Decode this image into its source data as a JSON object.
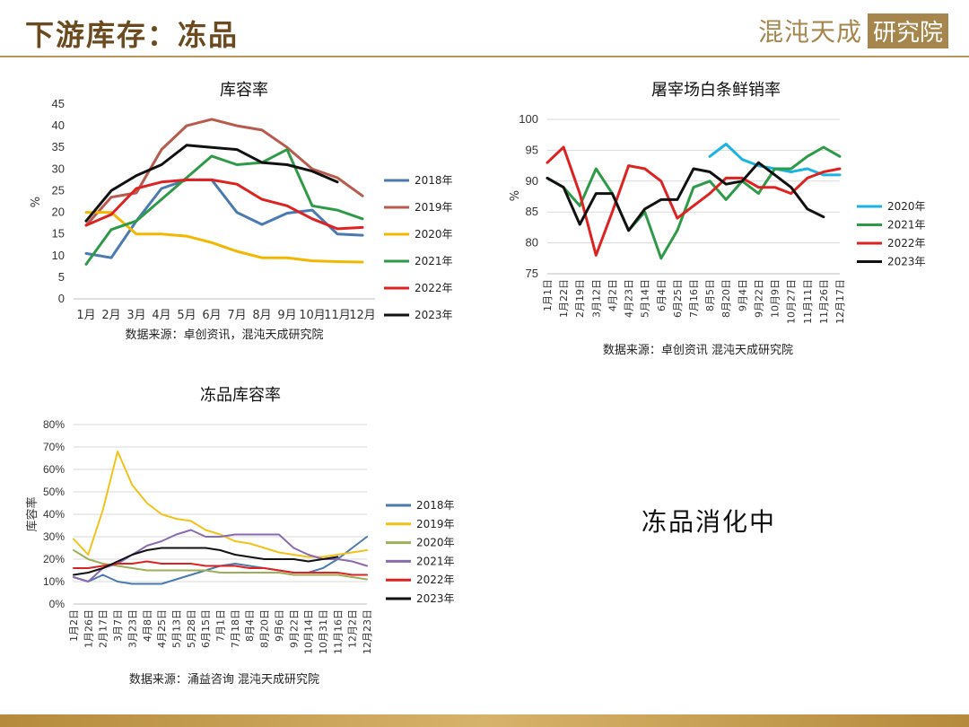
{
  "header": {
    "title": "下游库存：冻品",
    "logo_text": "混沌天成",
    "logo_box": "研究院"
  },
  "note": "冻品消化中",
  "chart_data": [
    {
      "type": "line",
      "title": "库容率",
      "ylabel": "%",
      "ylim": [
        0,
        45
      ],
      "yticks": [
        0,
        5,
        10,
        15,
        20,
        25,
        30,
        35,
        40,
        45
      ],
      "categories": [
        "1月",
        "2月",
        "3月",
        "4月",
        "5月",
        "6月",
        "7月",
        "8月",
        "9月",
        "10月",
        "11月",
        "12月"
      ],
      "source": "数据来源：卓创资讯，混沌天成研究院",
      "series": [
        {
          "name": "2018年",
          "color": "#4a7ab0",
          "values": [
            10.5,
            9.5,
            18,
            25.5,
            27.5,
            27.5,
            20,
            17.2,
            19.8,
            20.5,
            15,
            14.7
          ]
        },
        {
          "name": "2019年",
          "color": "#b85a4e",
          "values": [
            17,
            23.5,
            24.5,
            34.5,
            40,
            41.5,
            40,
            39,
            35,
            30,
            28,
            23.8
          ]
        },
        {
          "name": "2020年",
          "color": "#f2b700",
          "values": [
            20,
            20,
            15,
            15,
            14.5,
            13,
            11,
            9.5,
            9.5,
            8.8,
            8.6,
            8.5
          ]
        },
        {
          "name": "2021年",
          "color": "#2e9a48",
          "values": [
            8,
            16,
            18,
            23,
            28,
            33,
            31,
            31.5,
            34.5,
            21.5,
            20.5,
            18.5
          ]
        },
        {
          "name": "2022年",
          "color": "#dd2222",
          "values": [
            17,
            19.5,
            25.5,
            27,
            27.5,
            27.5,
            26.5,
            23,
            21.5,
            18.5,
            16.2,
            16.5
          ]
        },
        {
          "name": "2023年",
          "color": "#111111",
          "values": [
            18,
            25,
            28.5,
            31,
            35.5,
            35,
            34.5,
            31.5,
            31,
            29.5,
            27,
            null
          ]
        }
      ]
    },
    {
      "type": "line",
      "title": "屠宰场白条鲜销率",
      "ylabel": "%",
      "ylim": [
        75,
        100
      ],
      "yticks": [
        75,
        80,
        85,
        90,
        95,
        100
      ],
      "categories": [
        "1月1日",
        "1月22日",
        "2月19日",
        "3月12日",
        "4月2日",
        "4月23日",
        "5月14日",
        "6月4日",
        "6月25日",
        "7月16日",
        "8月5日",
        "8月20日",
        "9月4日",
        "9月22日",
        "10月9日",
        "10月27日",
        "11月11日",
        "11月26日",
        "12月17日"
      ],
      "source": "数据来源：卓创资讯 混沌天成研究院",
      "series": [
        {
          "name": "2020年",
          "color": "#1bb3e0",
          "values": [
            null,
            null,
            null,
            null,
            null,
            null,
            null,
            null,
            null,
            null,
            94,
            96,
            93.5,
            92.5,
            92,
            91.5,
            92,
            91,
            91
          ]
        },
        {
          "name": "2021年",
          "color": "#2e9a48",
          "values": [
            90.5,
            89,
            86,
            92,
            88,
            82,
            85,
            77.5,
            82,
            89,
            90,
            87,
            90,
            88,
            92,
            92,
            94,
            95.5,
            94
          ]
        },
        {
          "name": "2022年",
          "color": "#dd2222",
          "values": [
            93,
            95.5,
            88,
            78,
            85,
            92.5,
            92,
            90,
            84,
            86,
            88,
            90.5,
            90.5,
            89,
            89,
            88,
            90.5,
            91.5,
            92
          ]
        },
        {
          "name": "2023年",
          "color": "#111111",
          "values": [
            90.5,
            89,
            83,
            88,
            88,
            82,
            85.5,
            87,
            87,
            92,
            91.5,
            89.5,
            90,
            93,
            91,
            89,
            85.5,
            84.2,
            null
          ]
        }
      ]
    },
    {
      "type": "line",
      "title": "冻品库容率",
      "ylabel": "库容率",
      "ylim": [
        0,
        80
      ],
      "yticks": [
        "0%",
        "10%",
        "20%",
        "30%",
        "40%",
        "50%",
        "60%",
        "70%",
        "80%"
      ],
      "categories": [
        "1月2日",
        "1月26日",
        "2月17日",
        "3月7日",
        "3月23日",
        "4月8日",
        "4月25日",
        "5月13日",
        "5月28日",
        "6月15日",
        "7月1日",
        "7月18日",
        "8月4日",
        "8月20日",
        "9月6日",
        "9月22日",
        "10月14日",
        "10月31日",
        "11月16日",
        "12月2日",
        "12月23日"
      ],
      "source": "数据来源：涌益咨询 混沌天成研究院",
      "series": [
        {
          "name": "2018年",
          "color": "#4a7ab0",
          "values": [
            12,
            10,
            13,
            10,
            9,
            9,
            9,
            11,
            13,
            15,
            17,
            18,
            17,
            16,
            15,
            14,
            14,
            16,
            20,
            25,
            30
          ]
        },
        {
          "name": "2019年",
          "color": "#f2c21a",
          "values": [
            29,
            22,
            42,
            68,
            53,
            45,
            40,
            38,
            37,
            33,
            31,
            28,
            27,
            25,
            23,
            22,
            21,
            21,
            22,
            23,
            24
          ]
        },
        {
          "name": "2020年",
          "color": "#9caf58",
          "values": [
            24,
            20,
            18,
            17,
            16,
            15,
            15,
            15,
            15,
            15,
            14,
            14,
            14,
            14,
            14,
            13,
            13,
            13,
            13,
            12,
            11
          ]
        },
        {
          "name": "2021年",
          "color": "#8a6bb0",
          "values": [
            12,
            10,
            16,
            18,
            22,
            26,
            28,
            31,
            33,
            30,
            30,
            31,
            31,
            31,
            31,
            25,
            22,
            20,
            20,
            19,
            17
          ]
        },
        {
          "name": "2022年",
          "color": "#dd2222",
          "values": [
            16,
            16,
            17,
            18,
            18,
            19,
            18,
            18,
            18,
            17,
            17,
            17,
            16,
            16,
            15,
            14,
            14,
            14,
            14,
            13,
            13
          ]
        },
        {
          "name": "2023年",
          "color": "#111111",
          "values": [
            13,
            14,
            16,
            19,
            22,
            24,
            25,
            25,
            25,
            25,
            24,
            22,
            21,
            20,
            20,
            20,
            19,
            20,
            21,
            null,
            null
          ]
        }
      ]
    }
  ]
}
